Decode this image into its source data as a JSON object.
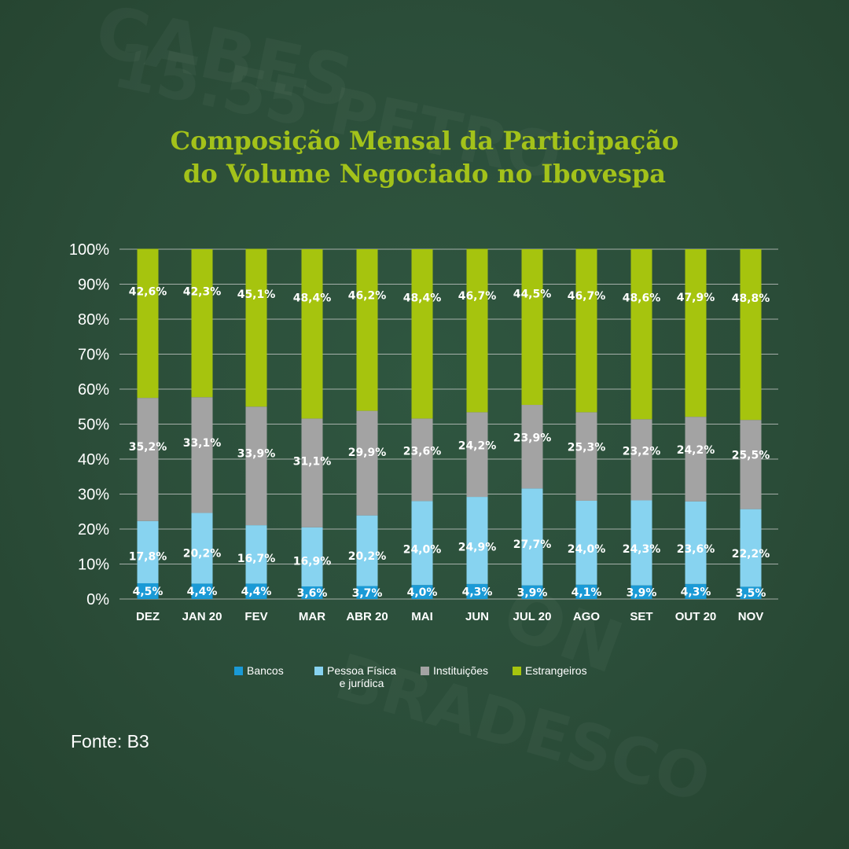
{
  "title_lines": [
    "Composição Mensal da Participação",
    "do Volume Negociado no Ibovespa"
  ],
  "source": "Fonte: B3",
  "colors": {
    "background": "#2c4f3a",
    "title": "#a3c21a",
    "bancos": "#1a9ad6",
    "pessoa": "#87d3f0",
    "instituicoes": "#a3a3a3",
    "estrangeiros": "#a6c40e",
    "gridline": "#cfcfcf"
  },
  "legend": [
    {
      "label": "Bancos",
      "color_key": "bancos"
    },
    {
      "label": "Pessoa Física\ne jurídica",
      "color_key": "pessoa"
    },
    {
      "label": "Instituições",
      "color_key": "instituicoes"
    },
    {
      "label": "Estrangeiros",
      "color_key": "estrangeiros"
    }
  ],
  "chart_data": {
    "type": "bar",
    "stacked": true,
    "categories": [
      "DEZ",
      "JAN 20",
      "FEV",
      "MAR",
      "ABR 20",
      "MAI",
      "JUN",
      "JUL 20",
      "AGO",
      "SET",
      "OUT 20",
      "NOV"
    ],
    "series": [
      {
        "name": "Bancos",
        "color_key": "bancos",
        "values": [
          4.5,
          4.4,
          4.4,
          3.6,
          3.7,
          4.0,
          4.3,
          3.9,
          4.1,
          3.9,
          4.3,
          3.5
        ],
        "labels": [
          "4,5%",
          "4,4%",
          "4,4%",
          "3,6%",
          "3,7%",
          "4,0%",
          "4,3%",
          "3,9%",
          "4,1%",
          "3,9%",
          "4,3%",
          "3,5%"
        ]
      },
      {
        "name": "Pessoa Física e jurídica",
        "color_key": "pessoa",
        "values": [
          17.8,
          20.2,
          16.7,
          16.9,
          20.2,
          24.0,
          24.9,
          27.7,
          24.0,
          24.3,
          23.6,
          22.2
        ],
        "labels": [
          "17,8%",
          "20,2%",
          "16,7%",
          "16,9%",
          "20,2%",
          "24,0%",
          "24,9%",
          "27,7%",
          "24,0%",
          "24,3%",
          "23,6%",
          "22,2%"
        ]
      },
      {
        "name": "Instituições",
        "color_key": "instituicoes",
        "values": [
          35.2,
          33.1,
          33.9,
          31.1,
          29.9,
          23.6,
          24.2,
          23.9,
          25.3,
          23.2,
          24.2,
          25.5
        ],
        "labels": [
          "35,2%",
          "33,1%",
          "33,9%",
          "31,1%",
          "29,9%",
          "23,6%",
          "24,2%",
          "23,9%",
          "25,3%",
          "23,2%",
          "24,2%",
          "25,5%"
        ]
      },
      {
        "name": "Estrangeiros",
        "color_key": "estrangeiros",
        "values": [
          42.6,
          42.3,
          45.1,
          48.4,
          46.2,
          48.4,
          46.7,
          44.5,
          46.7,
          48.6,
          47.9,
          48.8
        ],
        "labels": [
          "42,6%",
          "42,3%",
          "45,1%",
          "48,4%",
          "46,2%",
          "48,4%",
          "46,7%",
          "44,5%",
          "46,7%",
          "48,6%",
          "47,9%",
          "48,8%"
        ]
      }
    ],
    "y_ticks": [
      "0%",
      "10%",
      "20%",
      "30%",
      "40%",
      "50%",
      "60%",
      "70%",
      "80%",
      "90%",
      "100%"
    ],
    "ylim": [
      0,
      100
    ],
    "grid": true,
    "legend_position": "bottom"
  }
}
